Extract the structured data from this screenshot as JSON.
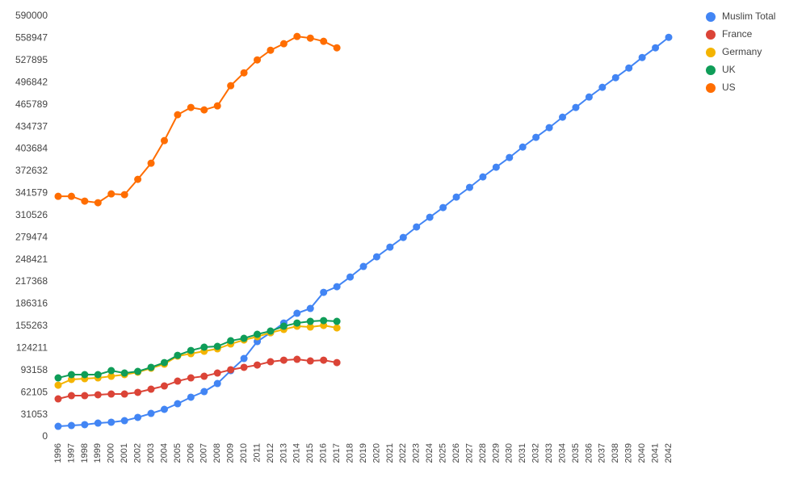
{
  "chart_data": {
    "type": "line",
    "categories": [
      "1996",
      "1997",
      "1998",
      "1999",
      "2000",
      "2001",
      "2002",
      "2003",
      "2004",
      "2005",
      "2006",
      "2007",
      "2008",
      "2009",
      "2010",
      "2011",
      "2012",
      "2013",
      "2014",
      "2015",
      "2016",
      "2017",
      "2018",
      "2019",
      "2020",
      "2021",
      "2022",
      "2023",
      "2024",
      "2025",
      "2026",
      "2027",
      "2028",
      "2029",
      "2030",
      "2031",
      "2032",
      "2033",
      "2034",
      "2035",
      "2036",
      "2037",
      "2038",
      "2039",
      "2040",
      "2041",
      "2042"
    ],
    "series": [
      {
        "name": "Muslim Total",
        "color": "#4285f4",
        "values": [
          14700,
          15800,
          17000,
          19200,
          20400,
          22600,
          27200,
          32800,
          38500,
          46400,
          55500,
          63400,
          74700,
          92800,
          109800,
          133600,
          146000,
          159600,
          173200,
          180000,
          202600,
          210500,
          224100,
          238900,
          252400,
          266000,
          279600,
          294300,
          307900,
          321500,
          336200,
          349800,
          364500,
          378100,
          391700,
          406400,
          420000,
          433600,
          448300,
          461900,
          476600,
          490200,
          503700,
          517300,
          532000,
          545600,
          560300
        ]
      },
      {
        "name": "France",
        "color": "#db4437",
        "values": [
          53200,
          57700,
          57700,
          58900,
          60000,
          60000,
          62300,
          66800,
          71300,
          78100,
          82600,
          84900,
          89400,
          94000,
          97400,
          100700,
          105300,
          107500,
          108700,
          106400,
          107500,
          104100,
          null,
          null,
          null,
          null,
          null,
          null,
          null,
          null,
          null,
          null,
          null,
          null,
          null,
          null,
          null,
          null,
          null,
          null,
          null,
          null,
          null,
          null,
          null,
          null,
          null
        ]
      },
      {
        "name": "Germany",
        "color": "#f4b400",
        "values": [
          72400,
          80400,
          81500,
          82600,
          84900,
          87200,
          90600,
          96200,
          101900,
          113200,
          116600,
          120000,
          123400,
          130200,
          135800,
          140400,
          146000,
          150600,
          155100,
          154000,
          156200,
          152800,
          null,
          null,
          null,
          null,
          null,
          null,
          null,
          null,
          null,
          null,
          null,
          null,
          null,
          null,
          null,
          null,
          null,
          null,
          null,
          null,
          null,
          null,
          null,
          null,
          null
        ]
      },
      {
        "name": "UK",
        "color": "#0f9d58",
        "values": [
          82600,
          87200,
          87200,
          87200,
          92800,
          89400,
          91700,
          97400,
          104100,
          114300,
          121100,
          125700,
          126800,
          134700,
          138100,
          143800,
          148300,
          155100,
          159600,
          161900,
          163000,
          161900,
          null,
          null,
          null,
          null,
          null,
          null,
          null,
          null,
          null,
          null,
          null,
          null,
          null,
          null,
          null,
          null,
          null,
          null,
          null,
          null,
          null,
          null,
          null,
          null,
          null
        ]
      },
      {
        "name": "US",
        "color": "#ff6d00",
        "values": [
          337300,
          337300,
          330600,
          328300,
          340700,
          339600,
          361100,
          383700,
          415400,
          451700,
          461900,
          458500,
          464100,
          492400,
          510500,
          528600,
          542200,
          551300,
          561500,
          559200,
          554700,
          545600,
          null,
          null,
          null,
          null,
          null,
          null,
          null,
          null,
          null,
          null,
          null,
          null,
          null,
          null,
          null,
          null,
          null,
          null,
          null,
          null,
          null,
          null,
          null,
          null,
          null
        ]
      }
    ],
    "ylim": [
      0,
      590000
    ],
    "yticks": [
      0,
      31053,
      62105,
      93158,
      124211,
      155263,
      186316,
      217368,
      248421,
      279474,
      310526,
      341579,
      372632,
      403684,
      434737,
      465789,
      496842,
      527895,
      558947,
      590000
    ],
    "grid": false,
    "legend": "top-right"
  }
}
